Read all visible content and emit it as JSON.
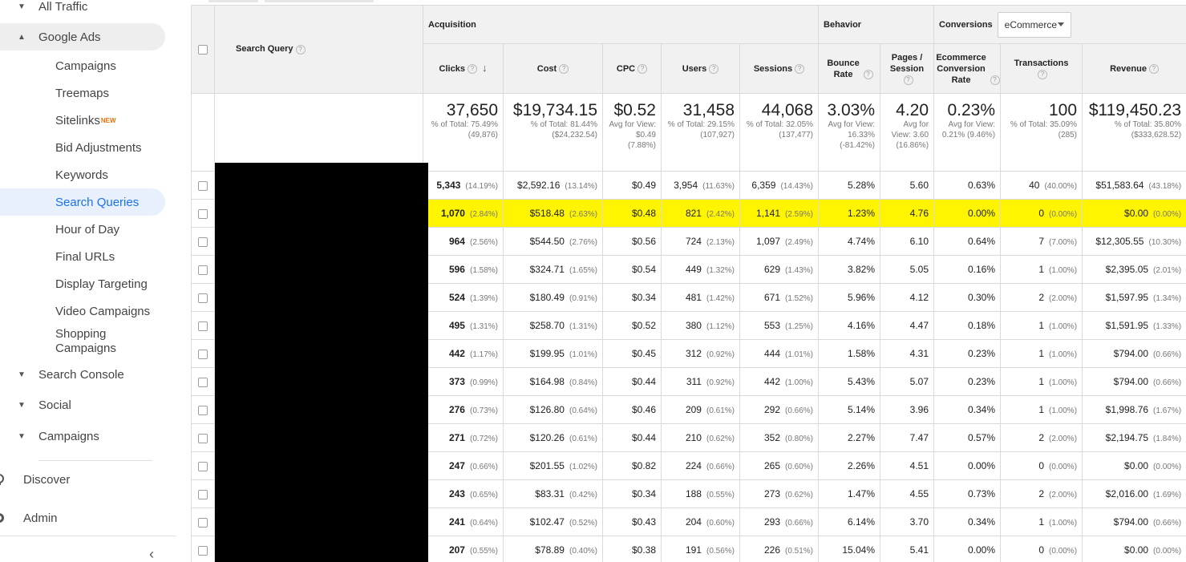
{
  "sidebar": {
    "items": [
      {
        "label": "All Traffic",
        "level": "top",
        "arrow": "▼"
      },
      {
        "label": "Google Ads",
        "level": "top",
        "arrow": "▲"
      },
      {
        "label": "Campaigns",
        "level": "sub"
      },
      {
        "label": "Treemaps",
        "level": "sub"
      },
      {
        "label": "Sitelinks",
        "level": "sub",
        "badge": "NEW"
      },
      {
        "label": "Bid Adjustments",
        "level": "sub"
      },
      {
        "label": "Keywords",
        "level": "sub"
      },
      {
        "label": "Search Queries",
        "level": "sub"
      },
      {
        "label": "Hour of Day",
        "level": "sub"
      },
      {
        "label": "Final URLs",
        "level": "sub"
      },
      {
        "label": "Display Targeting",
        "level": "sub"
      },
      {
        "label": "Video Campaigns",
        "level": "sub"
      },
      {
        "label": "Shopping Campaigns",
        "level": "sub"
      },
      {
        "label": "Search Console",
        "level": "top",
        "arrow": "▼"
      },
      {
        "label": "Social",
        "level": "top",
        "arrow": "▼"
      },
      {
        "label": "Campaigns",
        "level": "top",
        "arrow": "▼"
      }
    ],
    "discover": "Discover",
    "admin": "Admin",
    "collapse": "‹"
  },
  "table": {
    "groups": {
      "acquisition": "Acquisition",
      "behavior": "Behavior",
      "conversions": "Conversions"
    },
    "conversion_select": "eCommerce",
    "dimension": "Search Query",
    "columns": [
      "Clicks",
      "Cost",
      "CPC",
      "Users",
      "Sessions",
      "Bounce Rate",
      "Pages / Session",
      "Ecommerce Conversion Rate",
      "Transactions",
      "Revenue"
    ],
    "totals": [
      {
        "main": "37,650",
        "sub": "% of Total: 75.49% (49,876)"
      },
      {
        "main": "$19,734.15",
        "sub": "% of Total: 81.44% ($24,232.54)"
      },
      {
        "main": "$0.52",
        "sub": "Avg for View: $0.49 (7.88%)"
      },
      {
        "main": "31,458",
        "sub": "% of Total: 29.15% (107,927)"
      },
      {
        "main": "44,068",
        "sub": "% of Total: 32.05% (137,477)"
      },
      {
        "main": "3.03%",
        "sub": "Avg for View: 16.33% (-81.42%)"
      },
      {
        "main": "4.20",
        "sub": "Avg for View: 3.60 (16.86%)"
      },
      {
        "main": "0.23%",
        "sub": "Avg for View: 0.21% (9.46%)"
      },
      {
        "main": "100",
        "sub": "% of Total: 35.09% (285)"
      },
      {
        "main": "$119,450.23",
        "sub": "% of Total: 35.80% ($333,628.52)"
      }
    ],
    "rows": [
      {
        "clicks": "5,343",
        "clicks_pct": "(14.19%)",
        "cost": "$2,592.16",
        "cost_pct": "(13.14%)",
        "cpc": "$0.49",
        "users": "3,954",
        "users_pct": "(11.63%)",
        "sessions": "6,359",
        "sessions_pct": "(14.43%)",
        "bounce": "5.28%",
        "pages": "5.60",
        "conv": "0.63%",
        "trans": "40",
        "trans_pct": "(40.00%)",
        "revenue": "$51,583.64",
        "revenue_pct": "(43.18%)"
      },
      {
        "clicks": "1,070",
        "clicks_pct": "(2.84%)",
        "cost": "$518.48",
        "cost_pct": "(2.63%)",
        "cpc": "$0.48",
        "users": "821",
        "users_pct": "(2.42%)",
        "sessions": "1,141",
        "sessions_pct": "(2.59%)",
        "bounce": "1.23%",
        "pages": "4.76",
        "conv": "0.00%",
        "trans": "0",
        "trans_pct": "(0.00%)",
        "revenue": "$0.00",
        "revenue_pct": "(0.00%)"
      },
      {
        "clicks": "964",
        "clicks_pct": "(2.56%)",
        "cost": "$544.50",
        "cost_pct": "(2.76%)",
        "cpc": "$0.56",
        "users": "724",
        "users_pct": "(2.13%)",
        "sessions": "1,097",
        "sessions_pct": "(2.49%)",
        "bounce": "4.74%",
        "pages": "6.10",
        "conv": "0.64%",
        "trans": "7",
        "trans_pct": "(7.00%)",
        "revenue": "$12,305.55",
        "revenue_pct": "(10.30%)"
      },
      {
        "clicks": "596",
        "clicks_pct": "(1.58%)",
        "cost": "$324.71",
        "cost_pct": "(1.65%)",
        "cpc": "$0.54",
        "users": "449",
        "users_pct": "(1.32%)",
        "sessions": "629",
        "sessions_pct": "(1.43%)",
        "bounce": "3.82%",
        "pages": "5.05",
        "conv": "0.16%",
        "trans": "1",
        "trans_pct": "(1.00%)",
        "revenue": "$2,395.05",
        "revenue_pct": "(2.01%)"
      },
      {
        "clicks": "524",
        "clicks_pct": "(1.39%)",
        "cost": "$180.49",
        "cost_pct": "(0.91%)",
        "cpc": "$0.34",
        "users": "481",
        "users_pct": "(1.42%)",
        "sessions": "671",
        "sessions_pct": "(1.52%)",
        "bounce": "5.96%",
        "pages": "4.12",
        "conv": "0.30%",
        "trans": "2",
        "trans_pct": "(2.00%)",
        "revenue": "$1,597.95",
        "revenue_pct": "(1.34%)"
      },
      {
        "clicks": "495",
        "clicks_pct": "(1.31%)",
        "cost": "$258.70",
        "cost_pct": "(1.31%)",
        "cpc": "$0.52",
        "users": "380",
        "users_pct": "(1.12%)",
        "sessions": "553",
        "sessions_pct": "(1.25%)",
        "bounce": "4.16%",
        "pages": "4.47",
        "conv": "0.18%",
        "trans": "1",
        "trans_pct": "(1.00%)",
        "revenue": "$1,591.95",
        "revenue_pct": "(1.33%)"
      },
      {
        "clicks": "442",
        "clicks_pct": "(1.17%)",
        "cost": "$199.95",
        "cost_pct": "(1.01%)",
        "cpc": "$0.45",
        "users": "312",
        "users_pct": "(0.92%)",
        "sessions": "444",
        "sessions_pct": "(1.01%)",
        "bounce": "1.58%",
        "pages": "4.31",
        "conv": "0.23%",
        "trans": "1",
        "trans_pct": "(1.00%)",
        "revenue": "$794.00",
        "revenue_pct": "(0.66%)"
      },
      {
        "clicks": "373",
        "clicks_pct": "(0.99%)",
        "cost": "$164.98",
        "cost_pct": "(0.84%)",
        "cpc": "$0.44",
        "users": "311",
        "users_pct": "(0.92%)",
        "sessions": "442",
        "sessions_pct": "(1.00%)",
        "bounce": "5.43%",
        "pages": "5.07",
        "conv": "0.23%",
        "trans": "1",
        "trans_pct": "(1.00%)",
        "revenue": "$794.00",
        "revenue_pct": "(0.66%)"
      },
      {
        "clicks": "276",
        "clicks_pct": "(0.73%)",
        "cost": "$126.80",
        "cost_pct": "(0.64%)",
        "cpc": "$0.46",
        "users": "209",
        "users_pct": "(0.61%)",
        "sessions": "292",
        "sessions_pct": "(0.66%)",
        "bounce": "5.14%",
        "pages": "3.96",
        "conv": "0.34%",
        "trans": "1",
        "trans_pct": "(1.00%)",
        "revenue": "$1,998.76",
        "revenue_pct": "(1.67%)"
      },
      {
        "clicks": "271",
        "clicks_pct": "(0.72%)",
        "cost": "$120.26",
        "cost_pct": "(0.61%)",
        "cpc": "$0.44",
        "users": "210",
        "users_pct": "(0.62%)",
        "sessions": "352",
        "sessions_pct": "(0.80%)",
        "bounce": "2.27%",
        "pages": "7.47",
        "conv": "0.57%",
        "trans": "2",
        "trans_pct": "(2.00%)",
        "revenue": "$2,194.75",
        "revenue_pct": "(1.84%)"
      },
      {
        "clicks": "247",
        "clicks_pct": "(0.66%)",
        "cost": "$201.55",
        "cost_pct": "(1.02%)",
        "cpc": "$0.82",
        "users": "224",
        "users_pct": "(0.66%)",
        "sessions": "265",
        "sessions_pct": "(0.60%)",
        "bounce": "2.26%",
        "pages": "4.51",
        "conv": "0.00%",
        "trans": "0",
        "trans_pct": "(0.00%)",
        "revenue": "$0.00",
        "revenue_pct": "(0.00%)"
      },
      {
        "clicks": "243",
        "clicks_pct": "(0.65%)",
        "cost": "$83.31",
        "cost_pct": "(0.42%)",
        "cpc": "$0.34",
        "users": "188",
        "users_pct": "(0.55%)",
        "sessions": "273",
        "sessions_pct": "(0.62%)",
        "bounce": "1.47%",
        "pages": "4.55",
        "conv": "0.73%",
        "trans": "2",
        "trans_pct": "(2.00%)",
        "revenue": "$2,016.00",
        "revenue_pct": "(1.69%)"
      },
      {
        "clicks": "241",
        "clicks_pct": "(0.64%)",
        "cost": "$102.47",
        "cost_pct": "(0.52%)",
        "cpc": "$0.43",
        "users": "204",
        "users_pct": "(0.60%)",
        "sessions": "293",
        "sessions_pct": "(0.66%)",
        "bounce": "6.14%",
        "pages": "3.70",
        "conv": "0.34%",
        "trans": "1",
        "trans_pct": "(1.00%)",
        "revenue": "$794.00",
        "revenue_pct": "(0.66%)"
      },
      {
        "clicks": "207",
        "clicks_pct": "(0.55%)",
        "cost": "$78.89",
        "cost_pct": "(0.40%)",
        "cpc": "$0.38",
        "users": "191",
        "users_pct": "(0.56%)",
        "sessions": "226",
        "sessions_pct": "(0.51%)",
        "bounce": "15.04%",
        "pages": "5.41",
        "conv": "0.00%",
        "trans": "0",
        "trans_pct": "(0.00%)",
        "revenue": "$0.00",
        "revenue_pct": "(0.00%)"
      }
    ]
  },
  "colors": {
    "highlight": "#fff500",
    "selected_text": "#1a73e8",
    "selected_bg": "#e8f0fe",
    "header_bg": "#f1f1f1",
    "new_badge": "#e8710a"
  }
}
